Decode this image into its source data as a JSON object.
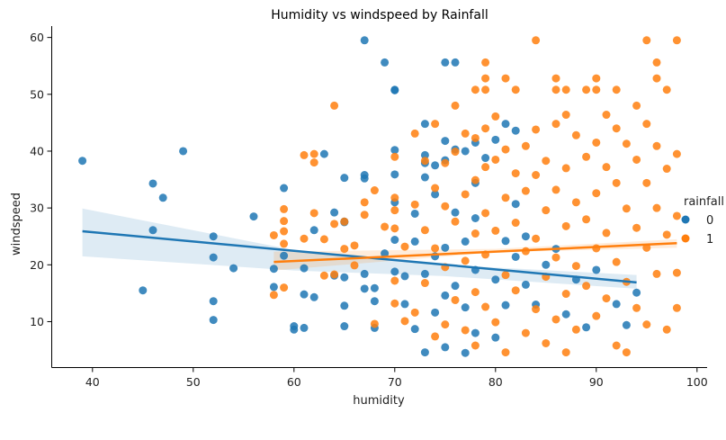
{
  "chart_data": {
    "type": "scatter",
    "title": "Humidity vs windspeed by Rainfall",
    "xlabel": "humidity",
    "ylabel": "windspeed",
    "xlim": [
      36,
      101
    ],
    "ylim": [
      2,
      62
    ],
    "xticks": [
      40,
      50,
      60,
      70,
      80,
      90,
      100
    ],
    "yticks": [
      10,
      20,
      30,
      40,
      50,
      60
    ],
    "grid": false,
    "legend": {
      "title": "rainfall",
      "placement": "right"
    },
    "series": [
      {
        "name": "0",
        "color": "#1f77b4",
        "points": [
          [
            39,
            38.3
          ],
          [
            45,
            15.5
          ],
          [
            46,
            34.3
          ],
          [
            46,
            26.1
          ],
          [
            47,
            31.8
          ],
          [
            49,
            40.0
          ],
          [
            52,
            25.0
          ],
          [
            52,
            21.3
          ],
          [
            52,
            13.6
          ],
          [
            52,
            10.3
          ],
          [
            54,
            19.4
          ],
          [
            56,
            28.5
          ],
          [
            58,
            19.3
          ],
          [
            58,
            16.1
          ],
          [
            59,
            33.5
          ],
          [
            59,
            21.6
          ],
          [
            60,
            9.2
          ],
          [
            60,
            8.6
          ],
          [
            61,
            8.9
          ],
          [
            61,
            19.4
          ],
          [
            61,
            14.8
          ],
          [
            62,
            26.1
          ],
          [
            62,
            14.3
          ],
          [
            63,
            39.5
          ],
          [
            64,
            29.2
          ],
          [
            64,
            18.1
          ],
          [
            65,
            35.3
          ],
          [
            65,
            27.5
          ],
          [
            65,
            27.6
          ],
          [
            65,
            17.8
          ],
          [
            65,
            12.8
          ],
          [
            65,
            9.2
          ],
          [
            67,
            59.5
          ],
          [
            67,
            35.8
          ],
          [
            67,
            35.2
          ],
          [
            67,
            18.4
          ],
          [
            67,
            15.8
          ],
          [
            68,
            13.6
          ],
          [
            68,
            8.9
          ],
          [
            68,
            15.9
          ],
          [
            69,
            55.6
          ],
          [
            69,
            22.0
          ],
          [
            70,
            50.8
          ],
          [
            70,
            50.7
          ],
          [
            70,
            40.2
          ],
          [
            70,
            35.9
          ],
          [
            70,
            31.0
          ],
          [
            70,
            24.4
          ],
          [
            70,
            18.8
          ],
          [
            71,
            18.0
          ],
          [
            71,
            13.1
          ],
          [
            72,
            29.0
          ],
          [
            72,
            8.7
          ],
          [
            72,
            24.1
          ],
          [
            73,
            44.8
          ],
          [
            73,
            39.3
          ],
          [
            73,
            37.9
          ],
          [
            73,
            35.4
          ],
          [
            73,
            18.4
          ],
          [
            73,
            4.6
          ],
          [
            74,
            37.5
          ],
          [
            74,
            32.4
          ],
          [
            74,
            21.5
          ],
          [
            74,
            11.6
          ],
          [
            75,
            55.6
          ],
          [
            75,
            41.8
          ],
          [
            75,
            38.4
          ],
          [
            75,
            23.0
          ],
          [
            75,
            14.6
          ],
          [
            75,
            5.5
          ],
          [
            76,
            55.6
          ],
          [
            76,
            40.3
          ],
          [
            76,
            29.2
          ],
          [
            76,
            16.3
          ],
          [
            77,
            40.0
          ],
          [
            77,
            24.1
          ],
          [
            77,
            12.5
          ],
          [
            77,
            4.5
          ],
          [
            78,
            41.5
          ],
          [
            78,
            34.4
          ],
          [
            78,
            28.2
          ],
          [
            78,
            19.1
          ],
          [
            78,
            8.0
          ],
          [
            79,
            38.8
          ],
          [
            80,
            42.0
          ],
          [
            80,
            17.4
          ],
          [
            80,
            7.2
          ],
          [
            81,
            44.8
          ],
          [
            81,
            24.2
          ],
          [
            81,
            12.9
          ],
          [
            82,
            43.6
          ],
          [
            82,
            30.7
          ],
          [
            82,
            21.4
          ],
          [
            83,
            25.0
          ],
          [
            83,
            16.5
          ],
          [
            84,
            13.0
          ],
          [
            85,
            20.0
          ],
          [
            86,
            22.8
          ],
          [
            87,
            11.3
          ],
          [
            88,
            17.4
          ],
          [
            89,
            9.0
          ],
          [
            90,
            19.1
          ],
          [
            92,
            13.1
          ],
          [
            93,
            9.4
          ],
          [
            94,
            15.1
          ]
        ]
      },
      {
        "name": "1",
        "color": "#ff7f0e",
        "points": [
          [
            58,
            25.2
          ],
          [
            58,
            14.7
          ],
          [
            59,
            29.8
          ],
          [
            59,
            27.7
          ],
          [
            59,
            25.9
          ],
          [
            59,
            23.7
          ],
          [
            59,
            16.0
          ],
          [
            61,
            39.3
          ],
          [
            61,
            24.6
          ],
          [
            62,
            39.5
          ],
          [
            62,
            38.0
          ],
          [
            62,
            29.1
          ],
          [
            63,
            24.5
          ],
          [
            63,
            18.1
          ],
          [
            64,
            48.0
          ],
          [
            64,
            27.2
          ],
          [
            64,
            18.3
          ],
          [
            65,
            27.6
          ],
          [
            65,
            22.8
          ],
          [
            66,
            19.9
          ],
          [
            66,
            23.4
          ],
          [
            67,
            31.0
          ],
          [
            67,
            28.8
          ],
          [
            68,
            33.1
          ],
          [
            68,
            9.6
          ],
          [
            69,
            26.7
          ],
          [
            70,
            39.0
          ],
          [
            70,
            31.8
          ],
          [
            70,
            29.6
          ],
          [
            70,
            26.4
          ],
          [
            70,
            17.2
          ],
          [
            70,
            13.2
          ],
          [
            71,
            23.2
          ],
          [
            71,
            10.1
          ],
          [
            72,
            43.1
          ],
          [
            72,
            30.6
          ],
          [
            72,
            11.6
          ],
          [
            73,
            38.3
          ],
          [
            73,
            26.1
          ],
          [
            73,
            16.8
          ],
          [
            74,
            44.8
          ],
          [
            74,
            33.5
          ],
          [
            74,
            22.9
          ],
          [
            74,
            7.4
          ],
          [
            75,
            37.9
          ],
          [
            75,
            30.3
          ],
          [
            75,
            19.6
          ],
          [
            75,
            9.5
          ],
          [
            76,
            48.0
          ],
          [
            76,
            39.9
          ],
          [
            76,
            27.6
          ],
          [
            76,
            13.8
          ],
          [
            77,
            43.1
          ],
          [
            77,
            32.4
          ],
          [
            77,
            20.7
          ],
          [
            77,
            8.5
          ],
          [
            78,
            50.8
          ],
          [
            78,
            42.3
          ],
          [
            78,
            34.9
          ],
          [
            78,
            25.5
          ],
          [
            78,
            15.2
          ],
          [
            78,
            5.8
          ],
          [
            79,
            55.6
          ],
          [
            79,
            52.8
          ],
          [
            79,
            50.8
          ],
          [
            79,
            44.0
          ],
          [
            79,
            37.2
          ],
          [
            79,
            29.1
          ],
          [
            79,
            21.8
          ],
          [
            79,
            12.6
          ],
          [
            80,
            46.1
          ],
          [
            80,
            38.5
          ],
          [
            80,
            26.0
          ],
          [
            80,
            9.9
          ],
          [
            81,
            52.8
          ],
          [
            81,
            40.3
          ],
          [
            81,
            31.8
          ],
          [
            81,
            18.2
          ],
          [
            81,
            4.6
          ],
          [
            82,
            50.8
          ],
          [
            82,
            36.1
          ],
          [
            82,
            27.4
          ],
          [
            82,
            15.5
          ],
          [
            83,
            40.9
          ],
          [
            83,
            33.0
          ],
          [
            83,
            22.4
          ],
          [
            83,
            8.0
          ],
          [
            84,
            59.5
          ],
          [
            84,
            43.8
          ],
          [
            84,
            35.8
          ],
          [
            84,
            24.6
          ],
          [
            84,
            12.2
          ],
          [
            85,
            38.3
          ],
          [
            85,
            29.6
          ],
          [
            85,
            17.9
          ],
          [
            85,
            6.2
          ],
          [
            86,
            52.8
          ],
          [
            86,
            50.8
          ],
          [
            86,
            44.8
          ],
          [
            86,
            33.2
          ],
          [
            86,
            21.3
          ],
          [
            86,
            10.4
          ],
          [
            87,
            50.8
          ],
          [
            87,
            46.4
          ],
          [
            87,
            37.0
          ],
          [
            87,
            26.8
          ],
          [
            87,
            14.9
          ],
          [
            87,
            4.6
          ],
          [
            88,
            42.8
          ],
          [
            88,
            31.0
          ],
          [
            88,
            19.8
          ],
          [
            88,
            8.6
          ],
          [
            89,
            50.8
          ],
          [
            89,
            39.0
          ],
          [
            89,
            28.0
          ],
          [
            89,
            16.3
          ],
          [
            90,
            52.8
          ],
          [
            90,
            50.8
          ],
          [
            90,
            41.5
          ],
          [
            90,
            32.6
          ],
          [
            90,
            22.9
          ],
          [
            90,
            11.0
          ],
          [
            91,
            46.4
          ],
          [
            91,
            37.2
          ],
          [
            91,
            25.6
          ],
          [
            91,
            14.1
          ],
          [
            92,
            50.8
          ],
          [
            92,
            44.0
          ],
          [
            92,
            34.4
          ],
          [
            92,
            20.5
          ],
          [
            92,
            5.8
          ],
          [
            93,
            41.3
          ],
          [
            93,
            29.9
          ],
          [
            93,
            17.0
          ],
          [
            93,
            4.6
          ],
          [
            94,
            48.0
          ],
          [
            94,
            38.5
          ],
          [
            94,
            26.5
          ],
          [
            94,
            12.4
          ],
          [
            95,
            59.5
          ],
          [
            95,
            44.8
          ],
          [
            95,
            34.4
          ],
          [
            95,
            23.0
          ],
          [
            95,
            9.5
          ],
          [
            96,
            55.6
          ],
          [
            96,
            52.8
          ],
          [
            96,
            40.9
          ],
          [
            96,
            30.0
          ],
          [
            96,
            18.4
          ],
          [
            97,
            50.8
          ],
          [
            97,
            36.9
          ],
          [
            97,
            25.3
          ],
          [
            97,
            8.6
          ],
          [
            98,
            59.5
          ],
          [
            98,
            39.5
          ],
          [
            98,
            28.6
          ],
          [
            98,
            18.6
          ],
          [
            98,
            12.4
          ]
        ]
      }
    ],
    "regression": [
      {
        "series": "0",
        "line": [
          [
            39,
            25.9
          ],
          [
            94,
            16.9
          ]
        ],
        "band_low": [
          [
            39,
            21.5
          ],
          [
            60,
            19.0
          ],
          [
            75,
            18.0
          ],
          [
            94,
            15.8
          ]
        ],
        "band_high": [
          [
            39,
            29.9
          ],
          [
            60,
            22.6
          ],
          [
            75,
            20.0
          ],
          [
            94,
            18.2
          ]
        ]
      },
      {
        "series": "1",
        "line": [
          [
            58,
            20.5
          ],
          [
            98,
            23.8
          ]
        ],
        "band_low": [
          [
            58,
            19.0
          ],
          [
            80,
            22.2
          ],
          [
            98,
            23.0
          ]
        ],
        "band_high": [
          [
            58,
            22.3
          ],
          [
            80,
            22.8
          ],
          [
            98,
            24.5
          ]
        ]
      }
    ]
  }
}
